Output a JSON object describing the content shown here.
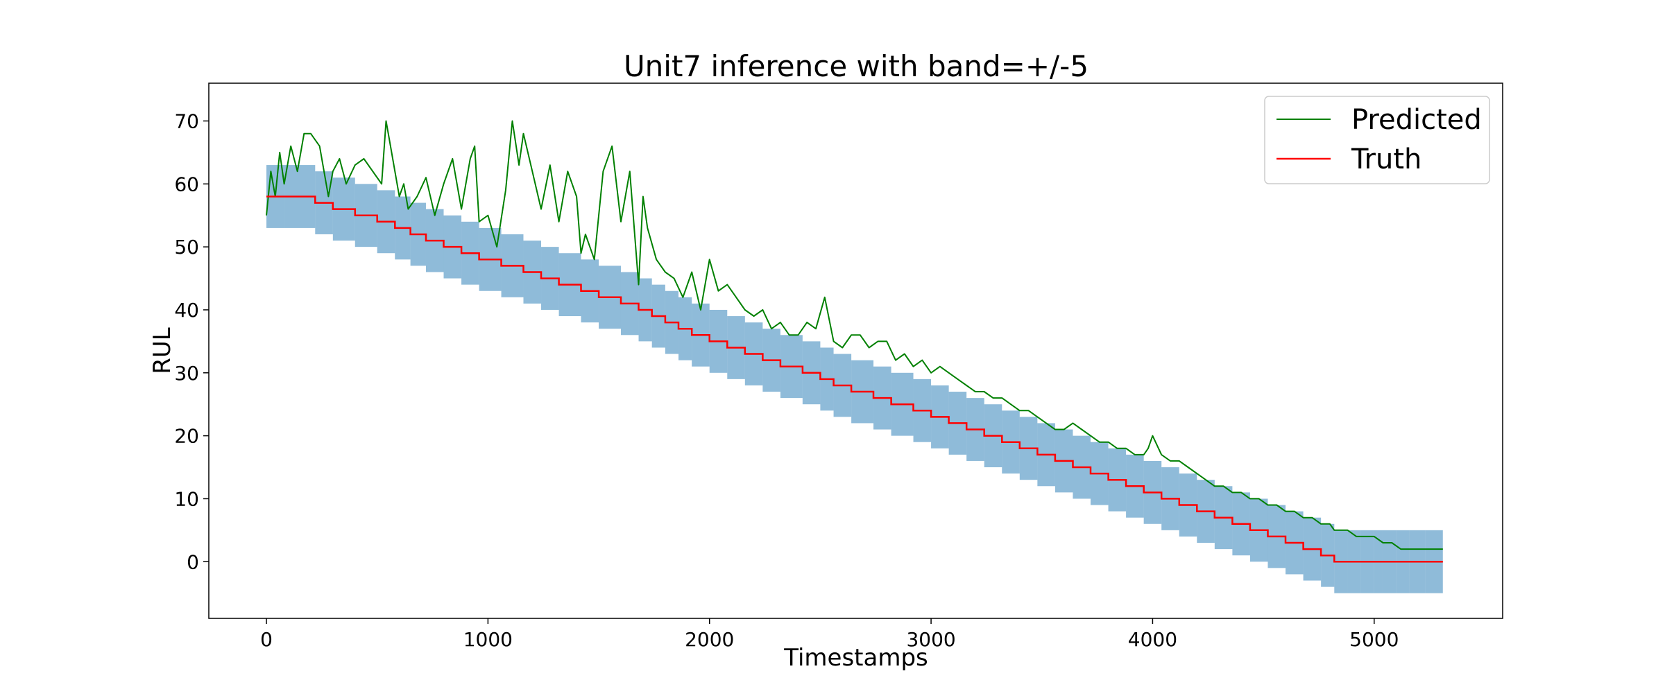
{
  "chart_data": {
    "type": "line",
    "title": "Unit7 inference with band=+/-5",
    "xlabel": "Timestamps",
    "ylabel": "RUL",
    "xlim": [
      -260,
      5580
    ],
    "ylim": [
      -9,
      76
    ],
    "xticks": [
      0,
      1000,
      2000,
      3000,
      4000,
      5000
    ],
    "yticks": [
      0,
      10,
      20,
      30,
      40,
      50,
      60,
      70
    ],
    "xtick_labels": [
      "0",
      "1000",
      "2000",
      "3000",
      "4000",
      "5000"
    ],
    "ytick_labels": [
      "0",
      "10",
      "20",
      "30",
      "40",
      "50",
      "60",
      "70"
    ],
    "grid": false,
    "legend_position": "top-right",
    "series": [
      {
        "name": "Predicted",
        "color": "#008000",
        "x": [
          0,
          20,
          40,
          60,
          80,
          110,
          140,
          170,
          200,
          240,
          280,
          300,
          330,
          360,
          400,
          440,
          480,
          520,
          540,
          560,
          600,
          620,
          640,
          680,
          720,
          760,
          800,
          840,
          880,
          920,
          940,
          960,
          1000,
          1040,
          1080,
          1110,
          1140,
          1160,
          1200,
          1240,
          1280,
          1320,
          1360,
          1400,
          1420,
          1440,
          1480,
          1520,
          1560,
          1600,
          1640,
          1680,
          1700,
          1720,
          1760,
          1800,
          1840,
          1880,
          1920,
          1960,
          2000,
          2040,
          2080,
          2120,
          2160,
          2200,
          2240,
          2280,
          2320,
          2360,
          2400,
          2440,
          2480,
          2520,
          2560,
          2600,
          2640,
          2680,
          2720,
          2760,
          2800,
          2840,
          2880,
          2920,
          2960,
          3000,
          3040,
          3080,
          3120,
          3160,
          3200,
          3240,
          3280,
          3320,
          3360,
          3400,
          3440,
          3480,
          3520,
          3560,
          3600,
          3640,
          3680,
          3720,
          3760,
          3800,
          3840,
          3880,
          3920,
          3960,
          3980,
          4000,
          4040,
          4080,
          4120,
          4160,
          4200,
          4240,
          4280,
          4320,
          4360,
          4400,
          4440,
          4480,
          4520,
          4560,
          4600,
          4640,
          4680,
          4720,
          4760,
          4800,
          4820,
          4840,
          4880,
          4920,
          4960,
          5000,
          5040,
          5080,
          5120,
          5160,
          5200,
          5240,
          5280,
          5310
        ],
        "y": [
          55,
          62,
          58,
          65,
          60,
          66,
          62,
          68,
          68,
          66,
          58,
          62,
          64,
          60,
          63,
          64,
          62,
          60,
          70,
          66,
          58,
          60,
          56,
          58,
          61,
          55,
          60,
          64,
          56,
          64,
          66,
          54,
          55,
          50,
          59,
          70,
          63,
          68,
          62,
          56,
          63,
          54,
          62,
          58,
          49,
          52,
          48,
          62,
          66,
          54,
          62,
          44,
          58,
          53,
          48,
          46,
          45,
          42,
          46,
          40,
          48,
          43,
          44,
          42,
          40,
          39,
          40,
          37,
          38,
          36,
          36,
          38,
          37,
          42,
          35,
          34,
          36,
          36,
          34,
          35,
          35,
          32,
          33,
          31,
          32,
          30,
          31,
          30,
          29,
          28,
          27,
          27,
          26,
          26,
          25,
          24,
          24,
          23,
          22,
          21,
          21,
          22,
          21,
          20,
          19,
          19,
          18,
          18,
          17,
          17,
          18,
          20,
          17,
          16,
          16,
          15,
          14,
          13,
          12,
          12,
          11,
          11,
          10,
          10,
          9,
          9,
          8,
          8,
          7,
          7,
          6,
          6,
          5,
          5,
          5,
          4,
          4,
          4,
          3,
          3,
          2,
          2,
          2,
          2,
          2,
          2
        ]
      },
      {
        "name": "Truth",
        "color": "#ff0000",
        "x": [
          0,
          80,
          220,
          300,
          400,
          500,
          580,
          650,
          720,
          800,
          880,
          960,
          1060,
          1160,
          1240,
          1320,
          1420,
          1500,
          1600,
          1680,
          1740,
          1800,
          1860,
          1920,
          2000,
          2080,
          2160,
          2240,
          2320,
          2420,
          2500,
          2560,
          2640,
          2740,
          2820,
          2920,
          3000,
          3080,
          3160,
          3240,
          3320,
          3400,
          3480,
          3560,
          3640,
          3720,
          3800,
          3880,
          3960,
          4040,
          4120,
          4200,
          4280,
          4360,
          4440,
          4520,
          4600,
          4680,
          4760,
          4820,
          4880,
          4940,
          5000,
          5040,
          5100,
          5160,
          5230,
          5310
        ],
        "y": [
          58,
          58,
          57,
          56,
          55,
          54,
          53,
          52,
          51,
          50,
          49,
          48,
          47,
          46,
          45,
          44,
          43,
          42,
          41,
          40,
          39,
          38,
          37,
          36,
          35,
          34,
          33,
          32,
          31,
          30,
          29,
          28,
          27,
          26,
          25,
          24,
          23,
          22,
          21,
          20,
          19,
          18,
          17,
          16,
          15,
          14,
          13,
          12,
          11,
          10,
          9,
          8,
          7,
          6,
          5,
          4,
          3,
          2,
          1,
          0,
          0,
          0,
          0,
          0,
          0,
          0,
          0,
          0
        ]
      }
    ],
    "band": {
      "offset": 5,
      "color": "#1f77b4",
      "opacity": 0.5
    }
  }
}
